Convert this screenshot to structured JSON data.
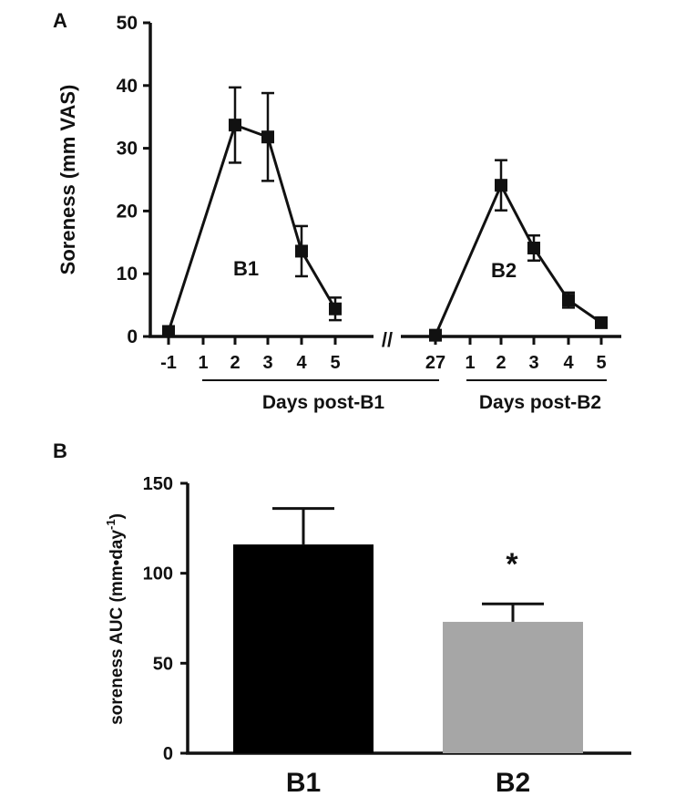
{
  "chart_data": [
    {
      "panel": "A",
      "type": "line",
      "ylabel": "Soreness (mm VAS)",
      "ylim": [
        0,
        50
      ],
      "yticks": [
        0,
        10,
        20,
        30,
        40,
        50
      ],
      "axis_break": "//",
      "x_tick_labels": [
        "-1",
        "1",
        "2",
        "3",
        "4",
        "5",
        "27",
        "1",
        "2",
        "3",
        "4",
        "5"
      ],
      "group_labels": [
        "Days post-B1",
        "Days post-B2"
      ],
      "series": [
        {
          "name": "B1",
          "label": "B1",
          "points": [
            {
              "x": "-1",
              "y": 0.8,
              "err": 0.5
            },
            {
              "x": "2",
              "y": 33.7,
              "err": 6.0
            },
            {
              "x": "3",
              "y": 31.8,
              "err": 7.0
            },
            {
              "x": "4",
              "y": 13.6,
              "err": 4.0
            },
            {
              "x": "5",
              "y": 4.4,
              "err": 1.8
            }
          ]
        },
        {
          "name": "B2",
          "label": "B2",
          "points": [
            {
              "x": "27",
              "y": 0.2,
              "err": 0.3
            },
            {
              "x": "2",
              "y": 24.1,
              "err": 4.0
            },
            {
              "x": "3",
              "y": 14.1,
              "err": 2.0
            },
            {
              "x": "4",
              "y": 5.8,
              "err": 1.2
            },
            {
              "x": "5",
              "y": 2.2,
              "err": 0.6
            }
          ]
        }
      ]
    },
    {
      "panel": "B",
      "type": "bar",
      "ylabel": "soreness AUC (mm•day",
      "ylabel_sup": "-1",
      "ylabel_close": ")",
      "ylim": [
        0,
        150
      ],
      "yticks": [
        0,
        50,
        100,
        150
      ],
      "categories": [
        "B1",
        "B2"
      ],
      "values": [
        116,
        73
      ],
      "errors": [
        20,
        10
      ],
      "colors": [
        "#000000",
        "#a6a6a6"
      ],
      "annotation": "*"
    }
  ]
}
